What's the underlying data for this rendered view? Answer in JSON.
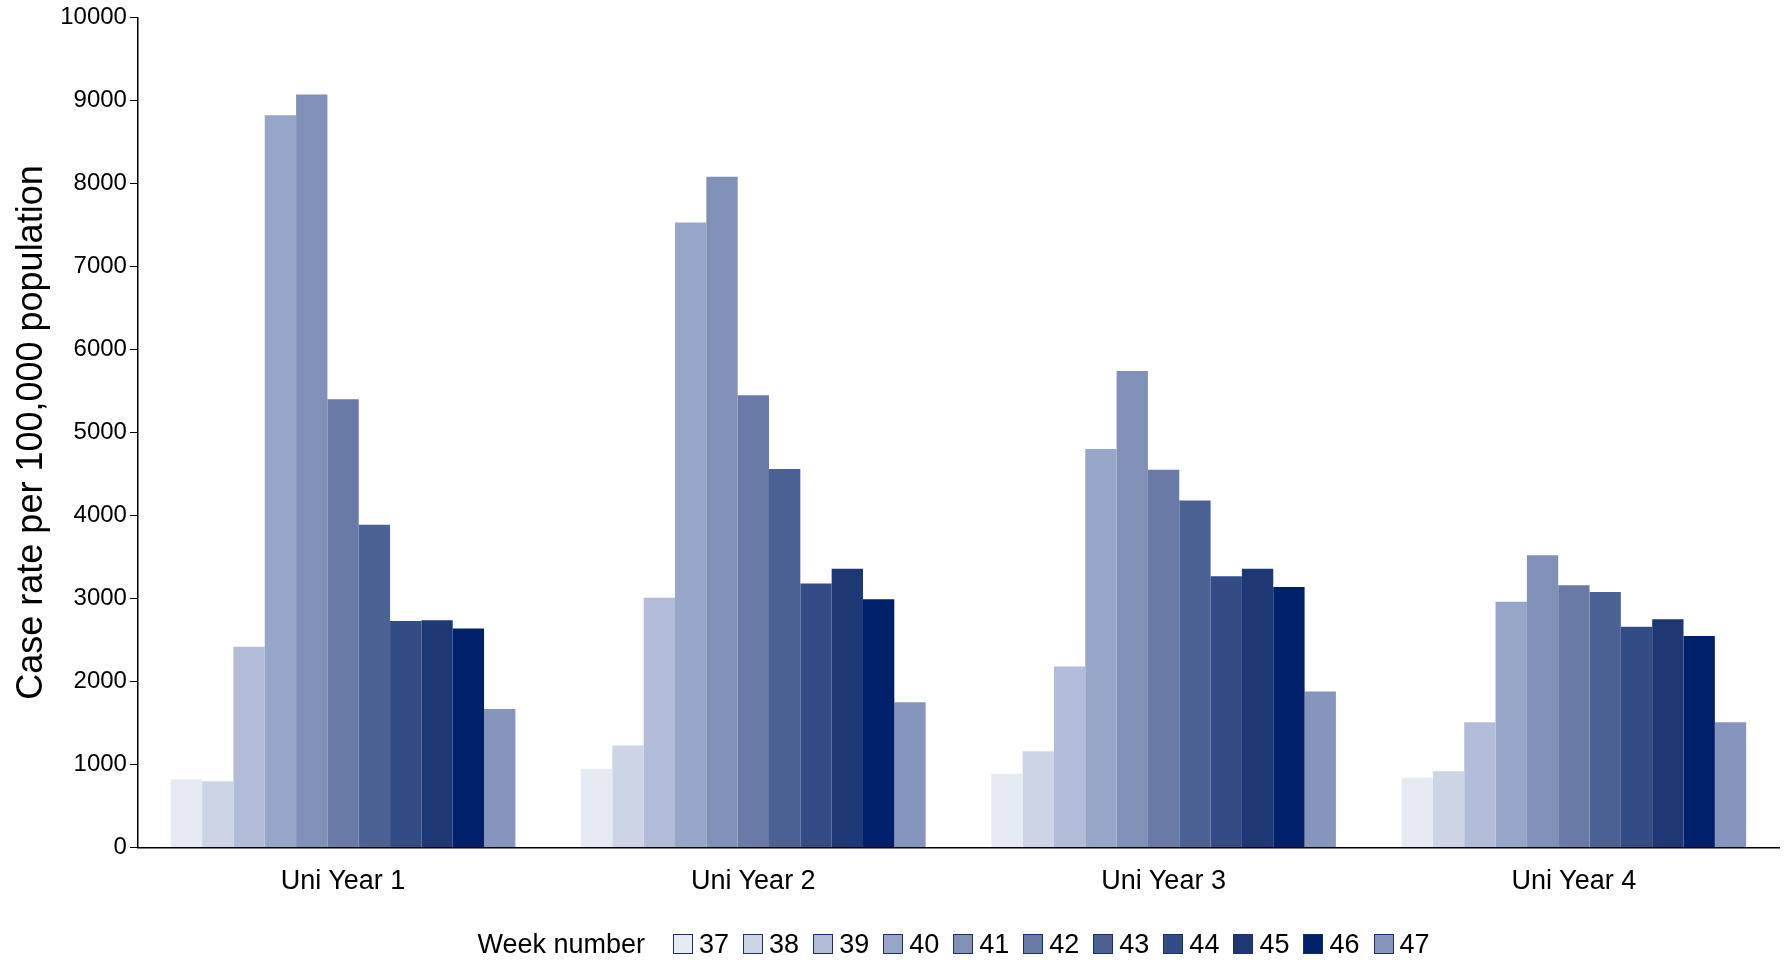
{
  "chart_data": {
    "type": "bar",
    "ylabel": "Case rate per 100,000 population",
    "legend_title": "Week number",
    "legend": "bottom",
    "grid": false,
    "categories": [
      "Uni Year 1",
      "Uni Year 2",
      "Uni Year 3",
      "Uni Year 4"
    ],
    "ylim": [
      0,
      10000
    ],
    "yticks": [
      0,
      1000,
      2000,
      3000,
      4000,
      5000,
      6000,
      7000,
      8000,
      9000,
      10000
    ],
    "series": [
      {
        "name": "37",
        "color": "#e6eaf3",
        "values": [
          820,
          950,
          890,
          840
        ]
      },
      {
        "name": "38",
        "color": "#ccd4e6",
        "values": [
          800,
          1230,
          1160,
          920
        ]
      },
      {
        "name": "39",
        "color": "#b2bcd8",
        "values": [
          2420,
          3010,
          2180,
          1510
        ]
      },
      {
        "name": "40",
        "color": "#97a6c8",
        "values": [
          8820,
          7530,
          4800,
          2960
        ]
      },
      {
        "name": "41",
        "color": "#8090b6",
        "values": [
          9070,
          8080,
          5740,
          3520
        ]
      },
      {
        "name": "42",
        "color": "#6a7aa6",
        "values": [
          5400,
          5450,
          4550,
          3160
        ]
      },
      {
        "name": "43",
        "color": "#4d6294",
        "values": [
          3890,
          4560,
          4180,
          3080
        ]
      },
      {
        "name": "44",
        "color": "#334c85",
        "values": [
          2730,
          3180,
          3270,
          2660
        ]
      },
      {
        "name": "45",
        "color": "#1d3875",
        "values": [
          2740,
          3360,
          3360,
          2750
        ]
      },
      {
        "name": "46",
        "color": "#00206a",
        "values": [
          2640,
          2990,
          3140,
          2550
        ]
      },
      {
        "name": "47",
        "color": "#8595bb",
        "values": [
          1670,
          1750,
          1880,
          1510
        ]
      }
    ]
  }
}
